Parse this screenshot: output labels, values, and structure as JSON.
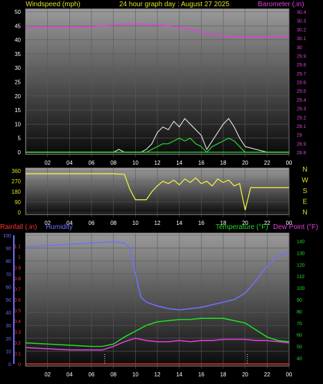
{
  "header": {
    "left": "Windspeed (mph)",
    "center": "24 hour graph day : August 27 2025",
    "right": "Barometer (.in)"
  },
  "colors": {
    "bg": "#000000",
    "frame": "#9a9a9a",
    "wind_avg": "#33dd33",
    "wind_gust": "#dddddd",
    "barometer": "#e040e0",
    "direction": "#f0f040",
    "rainfall": "#ff3030",
    "humidity": "#7070ff",
    "temperature": "#22dd22",
    "dewpoint": "#e040e0",
    "header_text": "#e0e020"
  },
  "chart_data": [
    {
      "id": "wind",
      "type": "line",
      "x_ticks": [
        "02",
        "04",
        "06",
        "08",
        "10",
        "12",
        "14",
        "16",
        "18",
        "20",
        "22",
        "00"
      ],
      "y_left_ticks": [
        "0",
        "5",
        "10",
        "15",
        "20",
        "25",
        "30",
        "35",
        "40",
        "45",
        "50"
      ],
      "y_right_ticks": [
        "28.8",
        "28.9",
        "29",
        "29.1",
        "29.2",
        "29.3",
        "29.4",
        "29.5",
        "29.6",
        "29.7",
        "29.8",
        "29.9",
        "30",
        "30.1",
        "30.2",
        "30.3",
        "30.4"
      ],
      "ylim_left": [
        0,
        50
      ],
      "ylim_right": [
        28.8,
        30.4
      ],
      "series": [
        {
          "key": "barometer",
          "axis": "right",
          "x": [
            0,
            2,
            4,
            6,
            8,
            9,
            10,
            11,
            12,
            13,
            14,
            15,
            16,
            17,
            18,
            19,
            20,
            21,
            22,
            23,
            24
          ],
          "values": [
            30.22,
            30.22,
            30.22,
            30.23,
            30.25,
            30.26,
            30.26,
            30.26,
            30.25,
            30.24,
            30.22,
            30.2,
            30.17,
            30.14,
            30.12,
            30.11,
            30.11,
            30.11,
            30.11,
            30.12,
            30.12
          ]
        },
        {
          "key": "wind_gust",
          "axis": "left",
          "x": [
            0,
            8,
            8.5,
            9,
            10.5,
            11,
            11.5,
            12,
            12.5,
            13,
            13.5,
            14,
            14.5,
            15,
            15.5,
            16,
            16.5,
            17,
            17.5,
            18,
            18.5,
            19,
            19.5,
            20,
            21,
            22,
            23,
            24
          ],
          "values": [
            0,
            0,
            1,
            0,
            0,
            1,
            3,
            7,
            9,
            8,
            11,
            9,
            12,
            10,
            8,
            6,
            1,
            4,
            7,
            10,
            12,
            9,
            5,
            2,
            1,
            0,
            0,
            0
          ]
        },
        {
          "key": "wind_avg",
          "axis": "left",
          "x": [
            0,
            10.5,
            11,
            11.5,
            12,
            12.5,
            13,
            13.5,
            14,
            14.5,
            15,
            15.5,
            16,
            16.5,
            17,
            17.5,
            18,
            18.5,
            19,
            19.5,
            20,
            21,
            24
          ],
          "values": [
            0,
            0,
            0,
            1,
            2,
            3,
            3,
            4,
            5,
            4,
            5,
            3,
            2,
            0,
            2,
            3,
            4,
            5,
            4,
            2,
            0,
            0,
            0
          ]
        }
      ]
    },
    {
      "id": "direction",
      "type": "line",
      "x_ticks": [
        "02",
        "04",
        "06",
        "08",
        "10",
        "12",
        "14",
        "16",
        "18",
        "20",
        "22",
        "00"
      ],
      "y_left_ticks": [
        "0",
        "90",
        "180",
        "270",
        "360"
      ],
      "y_right_labels": [
        "N",
        "W",
        "S",
        "E",
        "N"
      ],
      "ylim": [
        0,
        360
      ],
      "series": [
        {
          "key": "direction",
          "x": [
            0,
            8,
            9,
            9.5,
            10,
            11,
            11.5,
            12,
            12.5,
            13,
            13.5,
            14,
            14.5,
            15,
            15.5,
            16,
            16.5,
            17,
            17.5,
            18,
            18.5,
            19,
            19.5,
            20,
            20.5,
            24
          ],
          "values": [
            335,
            335,
            330,
            200,
            110,
            110,
            180,
            230,
            270,
            250,
            280,
            240,
            290,
            260,
            300,
            250,
            270,
            230,
            290,
            260,
            280,
            230,
            250,
            20,
            215,
            215
          ]
        }
      ]
    },
    {
      "id": "climate",
      "type": "line",
      "x_ticks": [
        "02",
        "04",
        "06",
        "08",
        "10",
        "12",
        "14",
        "16",
        "18",
        "20",
        "22",
        "00"
      ],
      "y_humidity_ticks": [
        "0",
        "10",
        "20",
        "30",
        "40",
        "50",
        "60",
        "70",
        "80",
        "90",
        "100"
      ],
      "y_rain_ticks": [
        "0",
        "0.1",
        "0.2",
        "0.3",
        "0.4",
        "0.5",
        "0.6",
        "0.7",
        "0.8",
        "0.9",
        "1",
        "1.1"
      ],
      "y_temp_ticks": [
        "40",
        "50",
        "60",
        "70",
        "80",
        "90",
        "100",
        "110",
        "120",
        "130",
        "140"
      ],
      "ylim_humidity": [
        0,
        100
      ],
      "ylim_rain": [
        0,
        1.2
      ],
      "ylim_temp": [
        35,
        145
      ],
      "legend_left": [
        "Rainfall (.in)",
        "Humidity"
      ],
      "legend_right": [
        "Temperature (°F)",
        "Dew Point (°F)"
      ],
      "series": [
        {
          "key": "humidity",
          "axis": "humidity",
          "x": [
            0,
            2,
            4,
            6,
            8,
            9,
            9.5,
            10,
            10.5,
            11,
            12,
            13,
            14,
            15,
            16,
            17,
            18,
            19,
            20,
            21,
            22,
            23,
            24
          ],
          "values": [
            91,
            92,
            93,
            94,
            95,
            94,
            90,
            70,
            52,
            48,
            45,
            43,
            42,
            43,
            44,
            46,
            48,
            50,
            55,
            65,
            76,
            84,
            87
          ]
        },
        {
          "key": "temperature",
          "axis": "temp",
          "x": [
            0,
            2,
            4,
            6,
            7,
            8,
            9,
            10,
            11,
            12,
            13,
            14,
            15,
            16,
            17,
            18,
            19,
            20,
            21,
            22,
            23,
            24
          ],
          "values": [
            53,
            52,
            51,
            50,
            50,
            52,
            58,
            63,
            68,
            71,
            72,
            73,
            73,
            74,
            74,
            74,
            72,
            70,
            64,
            58,
            55,
            54
          ]
        },
        {
          "key": "dewpoint",
          "axis": "temp",
          "x": [
            0,
            2,
            4,
            6,
            7,
            8,
            9,
            10,
            11,
            12,
            13,
            14,
            15,
            16,
            17,
            18,
            19,
            20,
            21,
            22,
            23,
            24
          ],
          "values": [
            49,
            48,
            47,
            47,
            47,
            50,
            54,
            57,
            55,
            54,
            54,
            55,
            54,
            55,
            55,
            56,
            56,
            56,
            55,
            55,
            54,
            53
          ]
        },
        {
          "key": "rainfall",
          "axis": "rain",
          "x": [
            0,
            24
          ],
          "values": [
            0,
            0
          ]
        }
      ]
    }
  ]
}
